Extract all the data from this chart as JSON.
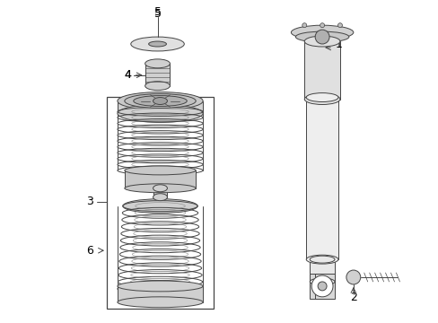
{
  "background_color": "#ffffff",
  "line_color": "#444444",
  "label_color": "#000000",
  "fig_w": 4.89,
  "fig_h": 3.6,
  "dpi": 100
}
